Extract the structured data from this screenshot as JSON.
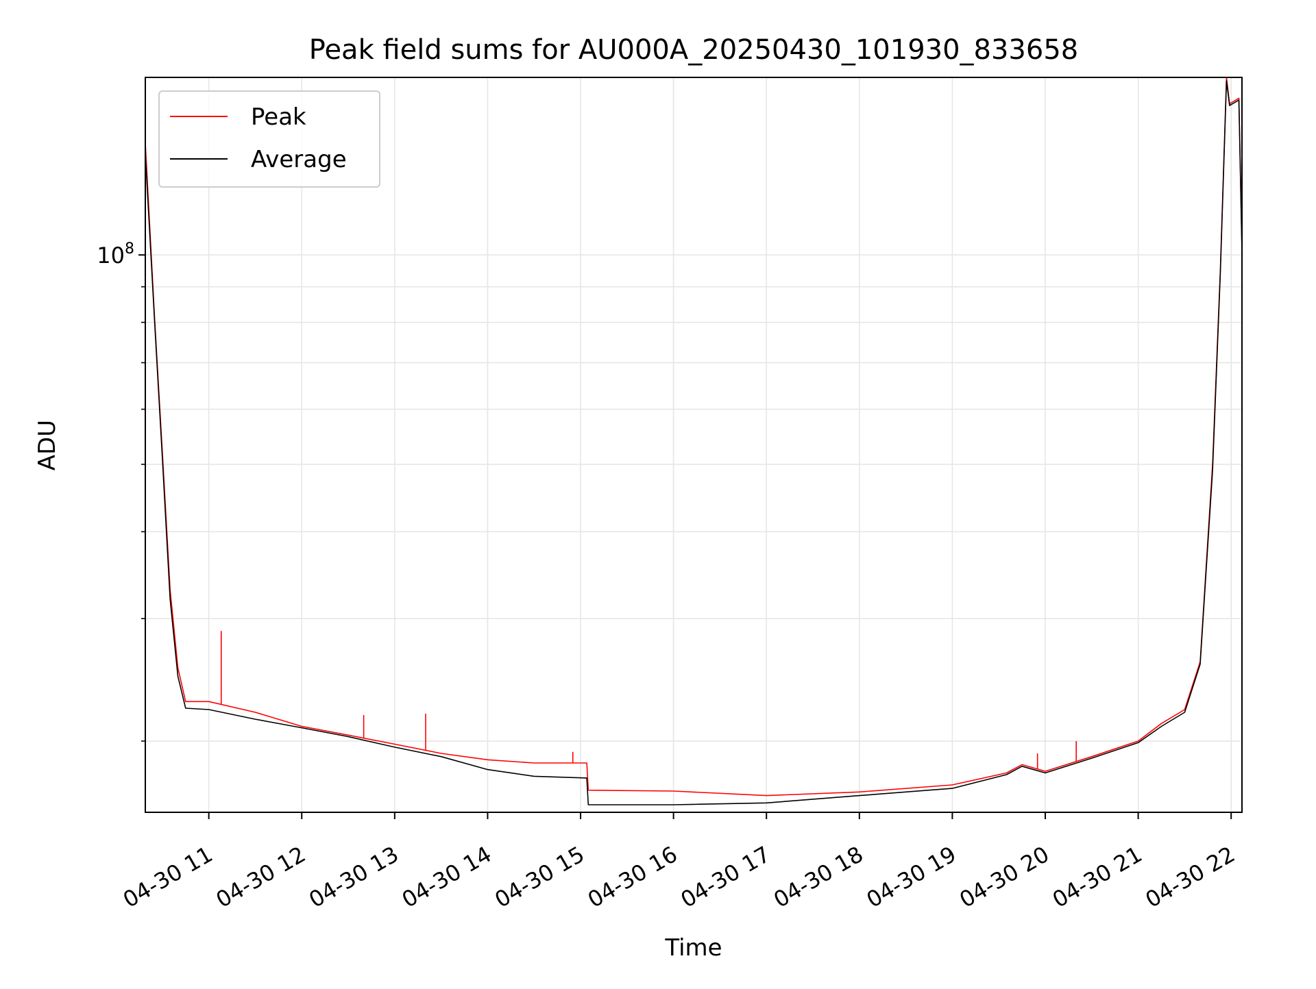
{
  "chart_data": {
    "type": "line",
    "title": "Peak field sums for AU000A_20250430_101930_833658",
    "xlabel": "Time",
    "ylabel": "ADU",
    "y_scale": "log",
    "grid": true,
    "legend_position": "top-left",
    "x_range": [
      "2025-04-30 10:19",
      "2025-04-30 22:07"
    ],
    "ylim": [
      15800000,
      180000000
    ],
    "x_ticks": [
      {
        "t": "2025-04-30 11:00",
        "label": "04-30 11"
      },
      {
        "t": "2025-04-30 12:00",
        "label": "04-30 12"
      },
      {
        "t": "2025-04-30 13:00",
        "label": "04-30 13"
      },
      {
        "t": "2025-04-30 14:00",
        "label": "04-30 14"
      },
      {
        "t": "2025-04-30 15:00",
        "label": "04-30 15"
      },
      {
        "t": "2025-04-30 16:00",
        "label": "04-30 16"
      },
      {
        "t": "2025-04-30 17:00",
        "label": "04-30 17"
      },
      {
        "t": "2025-04-30 18:00",
        "label": "04-30 18"
      },
      {
        "t": "2025-04-30 19:00",
        "label": "04-30 19"
      },
      {
        "t": "2025-04-30 20:00",
        "label": "04-30 20"
      },
      {
        "t": "2025-04-30 21:00",
        "label": "04-30 21"
      },
      {
        "t": "2025-04-30 22:00",
        "label": "04-30 22"
      }
    ],
    "y_major_ticks": [
      {
        "value": 100000000,
        "label_base": "10",
        "label_exp": "8"
      }
    ],
    "y_minor_ticks": [
      20000000,
      30000000,
      40000000,
      50000000,
      60000000,
      70000000,
      80000000,
      90000000
    ],
    "series": [
      {
        "name": "Peak",
        "color": "#ff0000",
        "points": [
          [
            "2025-04-30 10:19",
            145000000
          ],
          [
            "2025-04-30 10:25",
            81000000
          ],
          [
            "2025-04-30 10:30",
            52000000
          ],
          [
            "2025-04-30 10:35",
            33000000
          ],
          [
            "2025-04-30 10:40",
            25500000
          ],
          [
            "2025-04-30 10:45",
            22800000
          ],
          [
            "2025-04-30 11:00",
            22800000
          ],
          [
            "2025-04-30 11:30",
            22000000
          ],
          [
            "2025-04-30 12:00",
            21000000
          ],
          [
            "2025-04-30 12:30",
            20400000
          ],
          [
            "2025-04-30 13:00",
            19800000
          ],
          [
            "2025-04-30 13:30",
            19200000
          ],
          [
            "2025-04-30 14:00",
            18800000
          ],
          [
            "2025-04-30 14:30",
            18600000
          ],
          [
            "2025-04-30 15:04",
            18600000
          ],
          [
            "2025-04-30 15:05",
            17000000
          ],
          [
            "2025-04-30 16:00",
            16950000
          ],
          [
            "2025-04-30 17:00",
            16700000
          ],
          [
            "2025-04-30 18:00",
            16900000
          ],
          [
            "2025-04-30 19:00",
            17300000
          ],
          [
            "2025-04-30 19:35",
            18000000
          ],
          [
            "2025-04-30 19:45",
            18500000
          ],
          [
            "2025-04-30 20:00",
            18100000
          ],
          [
            "2025-04-30 20:30",
            19000000
          ],
          [
            "2025-04-30 21:00",
            20000000
          ],
          [
            "2025-04-30 21:15",
            21200000
          ],
          [
            "2025-04-30 21:30",
            22200000
          ],
          [
            "2025-04-30 21:40",
            26000000
          ],
          [
            "2025-04-30 21:48",
            50000000
          ],
          [
            "2025-04-30 21:53",
            95000000
          ],
          [
            "2025-04-30 21:57",
            180000000
          ],
          [
            "2025-04-30 21:59",
            165000000
          ],
          [
            "2025-04-30 22:05",
            168000000
          ],
          [
            "2025-04-30 22:07",
            102000000
          ]
        ],
        "spikes": [
          [
            "2025-04-30 11:08",
            28800000
          ],
          [
            "2025-04-30 12:40",
            21800000
          ],
          [
            "2025-04-30 13:20",
            21900000
          ],
          [
            "2025-04-30 14:55",
            19300000
          ],
          [
            "2025-04-30 19:55",
            19200000
          ],
          [
            "2025-04-30 20:20",
            20000000
          ]
        ]
      },
      {
        "name": "Average",
        "color": "#000000",
        "points": [
          [
            "2025-04-30 10:19",
            140000000
          ],
          [
            "2025-04-30 10:25",
            80000000
          ],
          [
            "2025-04-30 10:30",
            51000000
          ],
          [
            "2025-04-30 10:35",
            32000000
          ],
          [
            "2025-04-30 10:40",
            24800000
          ],
          [
            "2025-04-30 10:45",
            22300000
          ],
          [
            "2025-04-30 11:00",
            22200000
          ],
          [
            "2025-04-30 11:30",
            21500000
          ],
          [
            "2025-04-30 12:00",
            20900000
          ],
          [
            "2025-04-30 12:30",
            20300000
          ],
          [
            "2025-04-30 13:00",
            19600000
          ],
          [
            "2025-04-30 13:30",
            19000000
          ],
          [
            "2025-04-30 14:00",
            18200000
          ],
          [
            "2025-04-30 14:30",
            17800000
          ],
          [
            "2025-04-30 15:04",
            17700000
          ],
          [
            "2025-04-30 15:05",
            16200000
          ],
          [
            "2025-04-30 16:00",
            16200000
          ],
          [
            "2025-04-30 17:00",
            16300000
          ],
          [
            "2025-04-30 18:00",
            16700000
          ],
          [
            "2025-04-30 19:00",
            17100000
          ],
          [
            "2025-04-30 19:35",
            17900000
          ],
          [
            "2025-04-30 19:45",
            18400000
          ],
          [
            "2025-04-30 20:00",
            18000000
          ],
          [
            "2025-04-30 20:30",
            18900000
          ],
          [
            "2025-04-30 21:00",
            19900000
          ],
          [
            "2025-04-30 21:15",
            21000000
          ],
          [
            "2025-04-30 21:30",
            22000000
          ],
          [
            "2025-04-30 21:40",
            25800000
          ],
          [
            "2025-04-30 21:48",
            49000000
          ],
          [
            "2025-04-30 21:53",
            94000000
          ],
          [
            "2025-04-30 21:57",
            178000000
          ],
          [
            "2025-04-30 21:59",
            164000000
          ],
          [
            "2025-04-30 22:05",
            167000000
          ],
          [
            "2025-04-30 22:07",
            101000000
          ]
        ]
      }
    ]
  }
}
